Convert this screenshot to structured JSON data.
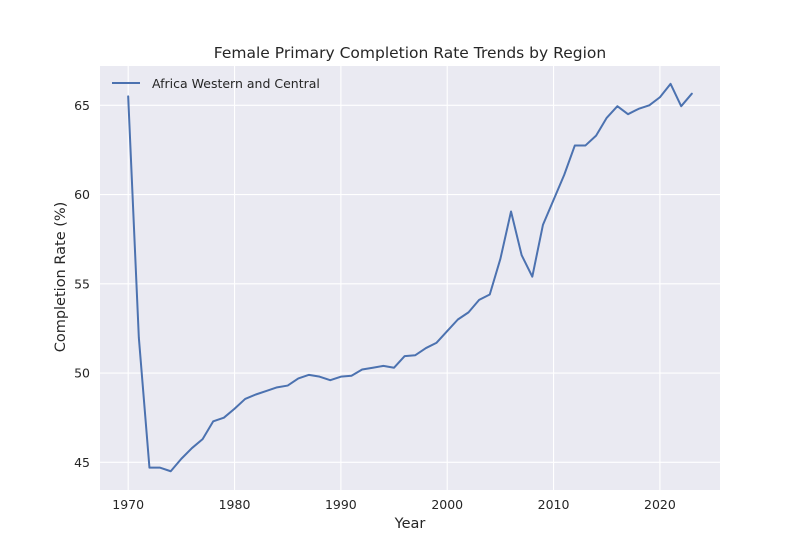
{
  "chart_data": {
    "type": "line",
    "title": "Female Primary Completion Rate Trends by Region",
    "xlabel": "Year",
    "ylabel": "Completion Rate (%)",
    "xlim": [
      1967.35,
      2025.65
    ],
    "ylim": [
      43.45,
      67.2
    ],
    "xticks": [
      1970,
      1980,
      1990,
      2000,
      2010,
      2020
    ],
    "yticks": [
      45,
      50,
      55,
      60,
      65
    ],
    "grid": true,
    "legend_position": "top-left",
    "background_color": "#EAEAF2",
    "grid_color": "#FFFFFF",
    "series": [
      {
        "name": "Africa Western and Central",
        "color": "#4C72B0",
        "x": [
          1970,
          1971,
          1972,
          1973,
          1974,
          1975,
          1976,
          1977,
          1978,
          1979,
          1980,
          1981,
          1982,
          1983,
          1984,
          1985,
          1986,
          1987,
          1988,
          1989,
          1990,
          1991,
          1992,
          1993,
          1994,
          1995,
          1996,
          1997,
          1998,
          1999,
          2000,
          2001,
          2002,
          2003,
          2004,
          2005,
          2006,
          2007,
          2008,
          2009,
          2010,
          2011,
          2012,
          2013,
          2014,
          2015,
          2016,
          2017,
          2018,
          2019,
          2020,
          2021,
          2022,
          2023
        ],
        "values": [
          65.5,
          52.0,
          44.7,
          44.7,
          44.5,
          45.2,
          45.8,
          46.3,
          47.3,
          47.5,
          48.0,
          48.55,
          48.8,
          49.0,
          49.2,
          49.3,
          49.7,
          49.9,
          49.8,
          49.6,
          49.8,
          49.85,
          50.2,
          50.3,
          50.4,
          50.3,
          50.95,
          51.0,
          51.4,
          51.7,
          52.35,
          53.0,
          53.4,
          54.1,
          54.4,
          56.4,
          59.05,
          56.6,
          55.4,
          58.3,
          59.7,
          61.1,
          62.75,
          62.75,
          63.3,
          64.3,
          64.95,
          64.5,
          64.8,
          65.0,
          65.45,
          66.2,
          64.95,
          65.65
        ]
      }
    ]
  }
}
